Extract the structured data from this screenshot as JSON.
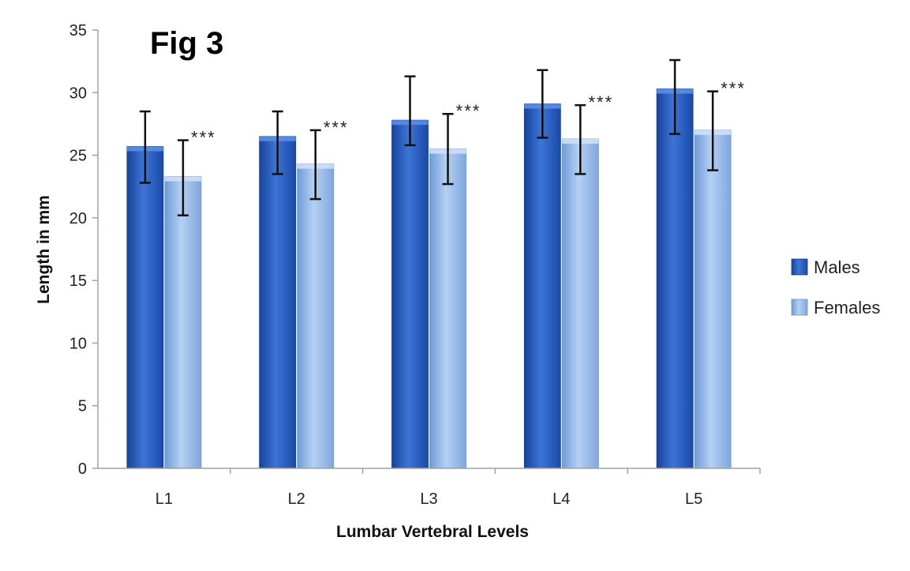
{
  "chart_data": {
    "type": "bar",
    "title": "Fig 3",
    "xlabel": "Lumbar Vertebral Levels",
    "ylabel": "Length  in mm",
    "ylim": [
      0,
      35
    ],
    "yticks": [
      "0",
      "5",
      "10",
      "15",
      "20",
      "25",
      "30",
      "35"
    ],
    "categories": [
      "L1",
      "L2",
      "L3",
      "L4",
      "L5"
    ],
    "series": [
      {
        "name": "Males",
        "values": [
          25.7,
          26.5,
          27.8,
          29.1,
          30.3
        ],
        "err_low": [
          22.8,
          23.5,
          25.8,
          26.4,
          26.7
        ],
        "err_high": [
          28.5,
          28.5,
          31.3,
          31.8,
          32.6
        ],
        "color": "#2a5fc4"
      },
      {
        "name": "Females",
        "values": [
          23.3,
          24.3,
          25.5,
          26.3,
          27.0
        ],
        "err_low": [
          20.2,
          21.5,
          22.7,
          23.5,
          23.8
        ],
        "err_high": [
          26.2,
          27.0,
          28.3,
          29.0,
          30.1
        ],
        "color": "#8db5e6"
      }
    ],
    "annotations": [
      "***",
      "***",
      "***",
      "***",
      "***"
    ],
    "grid": false,
    "legend": "right"
  }
}
